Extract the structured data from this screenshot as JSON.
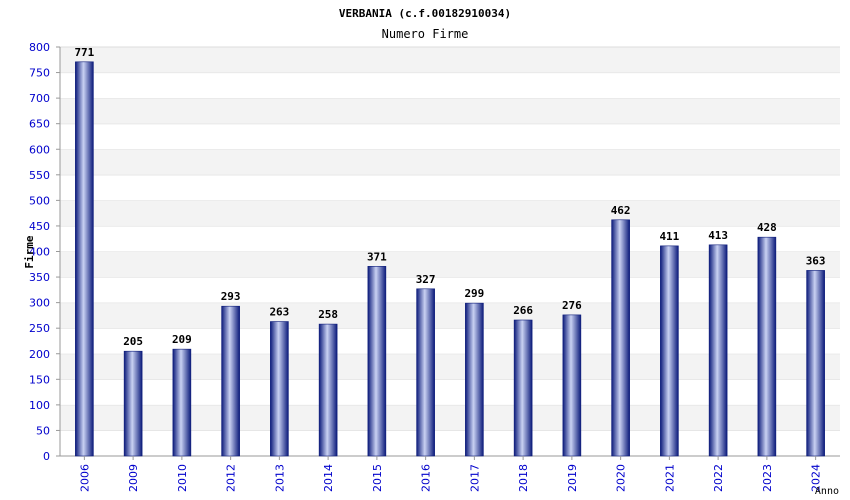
{
  "chart_data": {
    "type": "bar",
    "title": "VERBANIA (c.f.00182910034)",
    "subtitle": "Numero Firme",
    "xlabel": "Anno",
    "ylabel": "Firme",
    "ylim": [
      0,
      800
    ],
    "ytick_step": 50,
    "grid": true,
    "legend": "none",
    "categories": [
      "2006",
      "2009",
      "2010",
      "2012",
      "2013",
      "2014",
      "2015",
      "2016",
      "2017",
      "2018",
      "2019",
      "2020",
      "2021",
      "2022",
      "2023",
      "2024"
    ],
    "values": [
      771,
      205,
      209,
      293,
      263,
      258,
      371,
      327,
      299,
      266,
      276,
      462,
      411,
      413,
      428,
      363
    ],
    "colors": {
      "bar_dark": "#0b1a7a",
      "bar_light": "#c9d1f2",
      "tick_text": "#0000cc",
      "band": "#f3f3f3",
      "label_text": "#000000"
    }
  }
}
